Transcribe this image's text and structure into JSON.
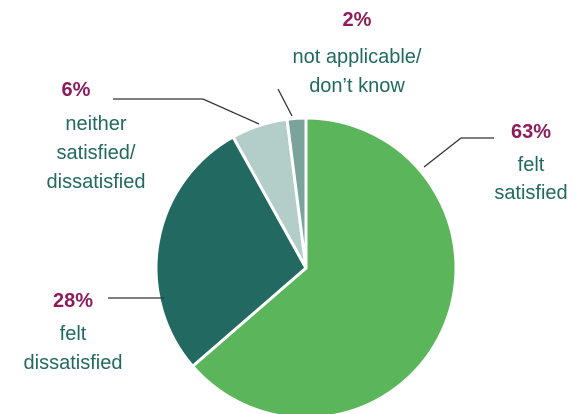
{
  "chart_data": {
    "type": "pie",
    "title": "",
    "slices": [
      {
        "value": 63,
        "percent_label": "63%",
        "label_lines": [
          "felt",
          "satisfied"
        ],
        "color": "#5bb55a"
      },
      {
        "value": 28,
        "percent_label": "28%",
        "label_lines": [
          "felt",
          "dissatisfied"
        ],
        "color": "#216961"
      },
      {
        "value": 6,
        "percent_label": "6%",
        "label_lines": [
          "neither",
          "satisfied/",
          "dissatisfied"
        ],
        "color": "#b3cdc9"
      },
      {
        "value": 2,
        "percent_label": "2%",
        "label_lines": [
          "not applicable/",
          "don’t know"
        ],
        "color": "#7aa39c"
      }
    ],
    "legend": "none",
    "colors": {
      "percent_text": "#8c1c5c",
      "label_text": "#216961",
      "leader_line": "#333333",
      "slice_border": "#ffffff"
    }
  }
}
